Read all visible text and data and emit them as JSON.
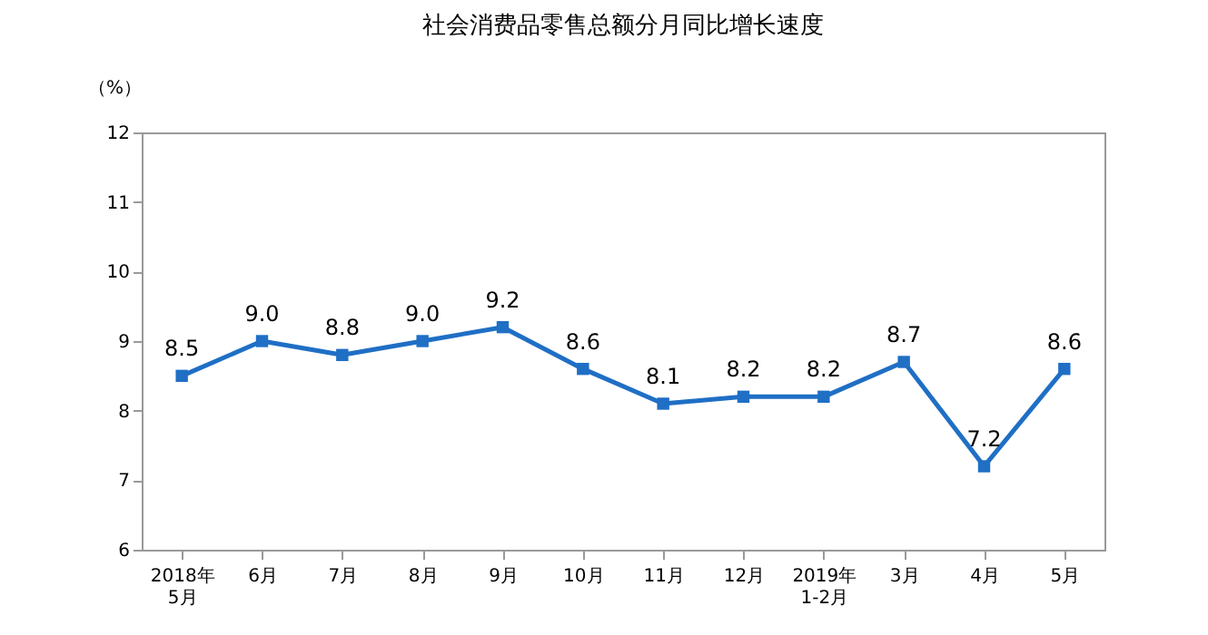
{
  "chart_data": {
    "type": "line",
    "title": "社会消费品零售总额分月同比增长速度",
    "ylabel": "（%）",
    "categories": [
      "2018年\n5月",
      "6月",
      "7月",
      "8月",
      "9月",
      "10月",
      "11月",
      "12月",
      "2019年\n1-2月",
      "3月",
      "4月",
      "5月"
    ],
    "series": [
      {
        "color": "#1f6fc5",
        "values": [
          8.5,
          9.0,
          8.8,
          9.0,
          9.2,
          8.6,
          8.1,
          8.2,
          8.2,
          8.7,
          7.2,
          8.6
        ],
        "value_labels": [
          "8.5",
          "9.0",
          "8.8",
          "9.0",
          "9.2",
          "8.6",
          "8.1",
          "8.2",
          "8.2",
          "8.7",
          "7.2",
          "8.6"
        ]
      }
    ],
    "ylim": [
      6,
      12
    ],
    "yticks": [
      6,
      7,
      8,
      9,
      10,
      11,
      12
    ],
    "grid": false,
    "marker": "square",
    "line_style": "solid"
  }
}
